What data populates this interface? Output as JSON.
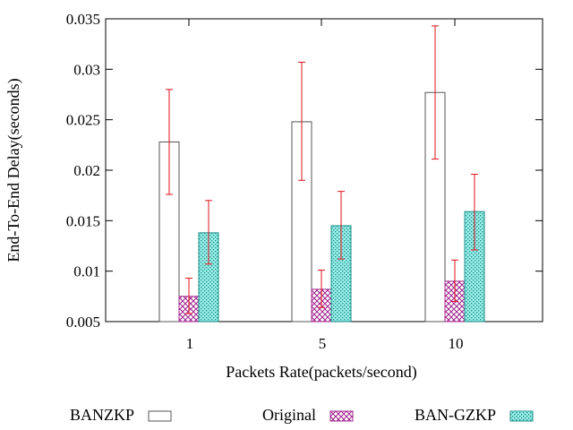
{
  "chart_data": {
    "type": "bar",
    "title": "",
    "xlabel": "Packets Rate(packets/second)",
    "ylabel": "End-To-End Delay(seconds)",
    "ylim": [
      0.005,
      0.035
    ],
    "yticks": [
      "0.005",
      "0.01",
      "0.015",
      "0.02",
      "0.025",
      "0.03",
      "0.035"
    ],
    "categories": [
      "1",
      "5",
      "10"
    ],
    "error_bar_color": "#e0101a",
    "series": [
      {
        "name": "BANZKP",
        "values": [
          0.0228,
          0.0248,
          0.0277
        ],
        "err_low": [
          0.0176,
          0.019,
          0.0211
        ],
        "err_high": [
          0.028,
          0.0307,
          0.0343
        ],
        "fill": "#ffffff",
        "stroke": "#555555",
        "pattern": "none"
      },
      {
        "name": "Original",
        "values": [
          0.0075,
          0.0082,
          0.009
        ],
        "err_low": [
          0.0058,
          0.0064,
          0.007
        ],
        "err_high": [
          0.0093,
          0.0101,
          0.0111
        ],
        "fill": "#ffffff",
        "stroke": "#a0208c",
        "pattern": "crosshatch"
      },
      {
        "name": "BAN-GZKP",
        "values": [
          0.0138,
          0.0145,
          0.0159
        ],
        "err_low": [
          0.0107,
          0.0112,
          0.0121
        ],
        "err_high": [
          0.017,
          0.0179,
          0.0196
        ],
        "fill": "#9ef0ea",
        "stroke": "#1a8f8a",
        "pattern": "dots"
      }
    ],
    "legend_position": "bottom"
  }
}
